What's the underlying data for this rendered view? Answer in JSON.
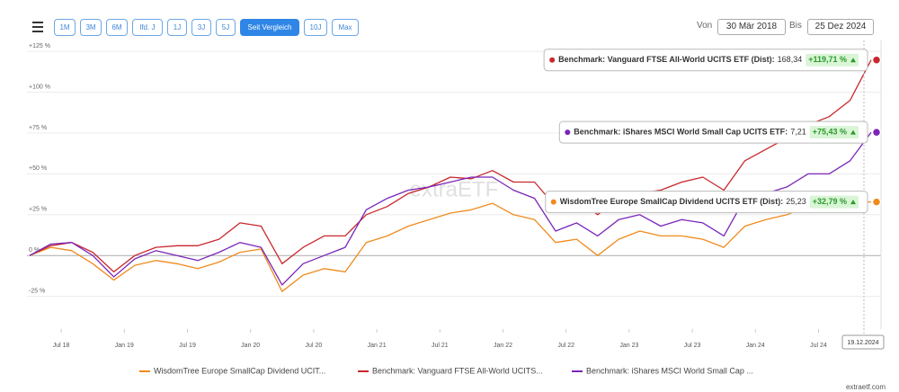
{
  "toolbar": {
    "buttons": [
      "1M",
      "3M",
      "6M",
      "lfd. J",
      "1J",
      "3J",
      "5J",
      "Seit Vergleich",
      "10J",
      "Max"
    ],
    "active": 7,
    "from_label": "Von",
    "from": "30 Mär 2018",
    "to_label": "Bis",
    "to": "25 Dez 2024"
  },
  "watermark": "extraETF",
  "footer": "extraetf.com",
  "chart_data": {
    "type": "line",
    "x": [
      "2018-04",
      "2018-06",
      "2018-08",
      "2018-10",
      "2018-12",
      "2019-02",
      "2019-04",
      "2019-06",
      "2019-08",
      "2019-10",
      "2019-12",
      "2020-02",
      "2020-04",
      "2020-06",
      "2020-08",
      "2020-10",
      "2020-12",
      "2021-02",
      "2021-04",
      "2021-06",
      "2021-08",
      "2021-10",
      "2021-12",
      "2022-02",
      "2022-04",
      "2022-06",
      "2022-08",
      "2022-10",
      "2022-12",
      "2023-02",
      "2023-04",
      "2023-06",
      "2023-08",
      "2023-10",
      "2023-12",
      "2024-02",
      "2024-04",
      "2024-06",
      "2024-08",
      "2024-10",
      "2024-12"
    ],
    "xlim": [
      "2018-04",
      "2024-12"
    ],
    "xticks": [
      {
        "value": "2018-07",
        "label": "Jul 18"
      },
      {
        "value": "2019-01",
        "label": "Jan 19"
      },
      {
        "value": "2019-07",
        "label": "Jul 19"
      },
      {
        "value": "2020-01",
        "label": "Jan 20"
      },
      {
        "value": "2020-07",
        "label": "Jul 20"
      },
      {
        "value": "2021-01",
        "label": "Jan 21"
      },
      {
        "value": "2021-07",
        "label": "Jul 21"
      },
      {
        "value": "2022-01",
        "label": "Jan 22"
      },
      {
        "value": "2022-07",
        "label": "Jul 22"
      },
      {
        "value": "2023-01",
        "label": "Jan 23"
      },
      {
        "value": "2023-07",
        "label": "Jul 23"
      },
      {
        "value": "2024-01",
        "label": "Jan 24"
      },
      {
        "value": "2024-07",
        "label": "Jul 24"
      }
    ],
    "ylim": [
      -45,
      130
    ],
    "yticks": [
      {
        "value": -25,
        "label": "-25 %"
      },
      {
        "value": 0,
        "label": "0 %"
      },
      {
        "value": 25,
        "label": "+25 %"
      },
      {
        "value": 50,
        "label": "+50 %"
      },
      {
        "value": 75,
        "label": "+75 %"
      },
      {
        "value": 100,
        "label": "+100 %"
      },
      {
        "value": 125,
        "label": "+125 %"
      }
    ],
    "grid": true,
    "series": [
      {
        "name": "WisdomTree Europe SmallCap Dividend UCIT...",
        "color": "#f08a1c",
        "values": [
          0,
          5,
          3,
          -5,
          -15,
          -6,
          -3,
          -5,
          -8,
          -4,
          2,
          4,
          -22,
          -12,
          -8,
          -10,
          8,
          12,
          18,
          22,
          26,
          28,
          32,
          25,
          22,
          8,
          10,
          0,
          10,
          15,
          12,
          12,
          10,
          5,
          18,
          22,
          25,
          30,
          30,
          33,
          32.79
        ]
      },
      {
        "name": "Benchmark: Vanguard FTSE All-World UCITS...",
        "color": "#c8282d",
        "values": [
          0,
          6,
          8,
          2,
          -10,
          0,
          5,
          6,
          6,
          10,
          20,
          18,
          -5,
          5,
          12,
          12,
          25,
          30,
          38,
          42,
          48,
          47,
          52,
          45,
          45,
          30,
          35,
          25,
          35,
          38,
          40,
          45,
          48,
          40,
          58,
          65,
          72,
          80,
          85,
          95,
          119.71
        ]
      },
      {
        "name": "Benchmark: iShares MSCI World Small Cap ...",
        "color": "#7a25b8",
        "values": [
          0,
          7,
          8,
          0,
          -13,
          -2,
          3,
          0,
          -3,
          2,
          8,
          5,
          -18,
          -5,
          0,
          5,
          28,
          35,
          40,
          42,
          45,
          48,
          48,
          40,
          35,
          15,
          20,
          12,
          22,
          25,
          18,
          22,
          20,
          12,
          35,
          38,
          42,
          50,
          50,
          58,
          75.43
        ]
      }
    ],
    "tooltips": [
      {
        "name": "WisdomTree Europe SmallCap Dividend UCITS ETF (Dist):",
        "price": "25,23",
        "change": "+32,79 %"
      },
      {
        "name": "Benchmark: Vanguard FTSE All-World UCITS ETF (Dist):",
        "price": "168,34",
        "change": "+119,71 %"
      },
      {
        "name": "Benchmark: iShares MSCI World Small Cap UCITS ETF:",
        "price": "7,21",
        "change": "+75,43 %"
      }
    ],
    "crosshair_label": "19.12.2024"
  }
}
